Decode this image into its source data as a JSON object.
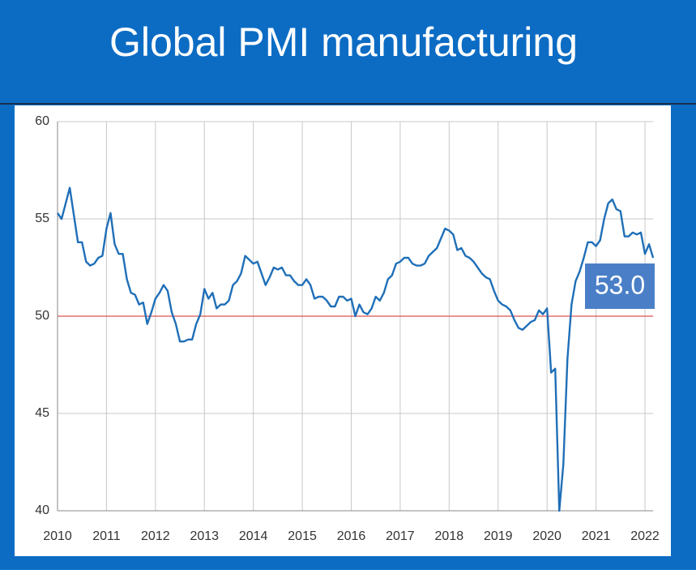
{
  "chart_data": {
    "type": "line",
    "title": "Global PMI manufacturing",
    "annotation": "53.0",
    "categories": [
      "2010",
      null,
      null,
      null,
      null,
      null,
      null,
      null,
      null,
      null,
      null,
      null,
      "2011",
      null,
      null,
      null,
      null,
      null,
      null,
      null,
      null,
      null,
      null,
      null,
      "2012",
      null,
      null,
      null,
      null,
      null,
      null,
      null,
      null,
      null,
      null,
      null,
      "2013",
      null,
      null,
      null,
      null,
      null,
      null,
      null,
      null,
      null,
      null,
      null,
      "2014",
      null,
      null,
      null,
      null,
      null,
      null,
      null,
      null,
      null,
      null,
      null,
      "2015",
      null,
      null,
      null,
      null,
      null,
      null,
      null,
      null,
      null,
      null,
      null,
      "2016",
      null,
      null,
      null,
      null,
      null,
      null,
      null,
      null,
      null,
      null,
      null,
      "2017",
      null,
      null,
      null,
      null,
      null,
      null,
      null,
      null,
      null,
      null,
      null,
      "2018",
      null,
      null,
      null,
      null,
      null,
      null,
      null,
      null,
      null,
      null,
      null,
      "2019",
      null,
      null,
      null,
      null,
      null,
      null,
      null,
      null,
      null,
      null,
      null,
      "2020",
      null,
      null,
      null,
      null,
      null,
      null,
      null,
      null,
      null,
      null,
      null,
      "2021",
      null,
      null,
      null,
      null,
      null,
      null,
      null,
      null,
      null,
      null,
      null,
      "2022",
      null,
      null
    ],
    "values": [
      55.3,
      55.0,
      55.8,
      56.6,
      55.2,
      53.8,
      53.8,
      52.8,
      52.6,
      52.7,
      53.0,
      53.1,
      54.5,
      55.3,
      53.7,
      53.2,
      53.2,
      51.9,
      51.2,
      51.1,
      50.6,
      50.7,
      49.6,
      50.2,
      50.9,
      51.2,
      51.6,
      51.3,
      50.2,
      49.6,
      48.7,
      48.7,
      48.8,
      48.8,
      49.6,
      50.1,
      51.4,
      50.9,
      51.2,
      50.4,
      50.6,
      50.6,
      50.8,
      51.6,
      51.8,
      52.2,
      53.1,
      52.9,
      52.7,
      52.8,
      52.2,
      51.6,
      52.0,
      52.5,
      52.4,
      52.5,
      52.1,
      52.1,
      51.8,
      51.6,
      51.6,
      51.9,
      51.6,
      50.9,
      51.0,
      51.0,
      50.8,
      50.5,
      50.5,
      51.0,
      51.0,
      50.8,
      50.9,
      50.0,
      50.6,
      50.2,
      50.1,
      50.4,
      51.0,
      50.8,
      51.2,
      51.9,
      52.1,
      52.7,
      52.8,
      53.0,
      53.0,
      52.7,
      52.6,
      52.6,
      52.7,
      53.1,
      53.3,
      53.5,
      54.0,
      54.5,
      54.4,
      54.2,
      53.4,
      53.5,
      53.1,
      53.0,
      52.8,
      52.5,
      52.2,
      52.0,
      51.9,
      51.3,
      50.8,
      50.6,
      50.5,
      50.3,
      49.8,
      49.4,
      49.3,
      49.5,
      49.7,
      49.8,
      50.3,
      50.1,
      50.4,
      47.1,
      47.3,
      40.0,
      42.4,
      47.8,
      50.6,
      51.8,
      52.3,
      53.0,
      53.8,
      53.8,
      53.6,
      53.9,
      55.0,
      55.8,
      56.0,
      55.5,
      55.4,
      54.1,
      54.1,
      54.3,
      54.2,
      54.3,
      53.2,
      53.7,
      53.0
    ],
    "color": "#1f6fb8",
    "reference_line": 50,
    "reference_color": "#d9534f",
    "ylim": [
      40,
      60
    ],
    "yticks": [
      40,
      45,
      50,
      55,
      60
    ],
    "grid": true
  }
}
